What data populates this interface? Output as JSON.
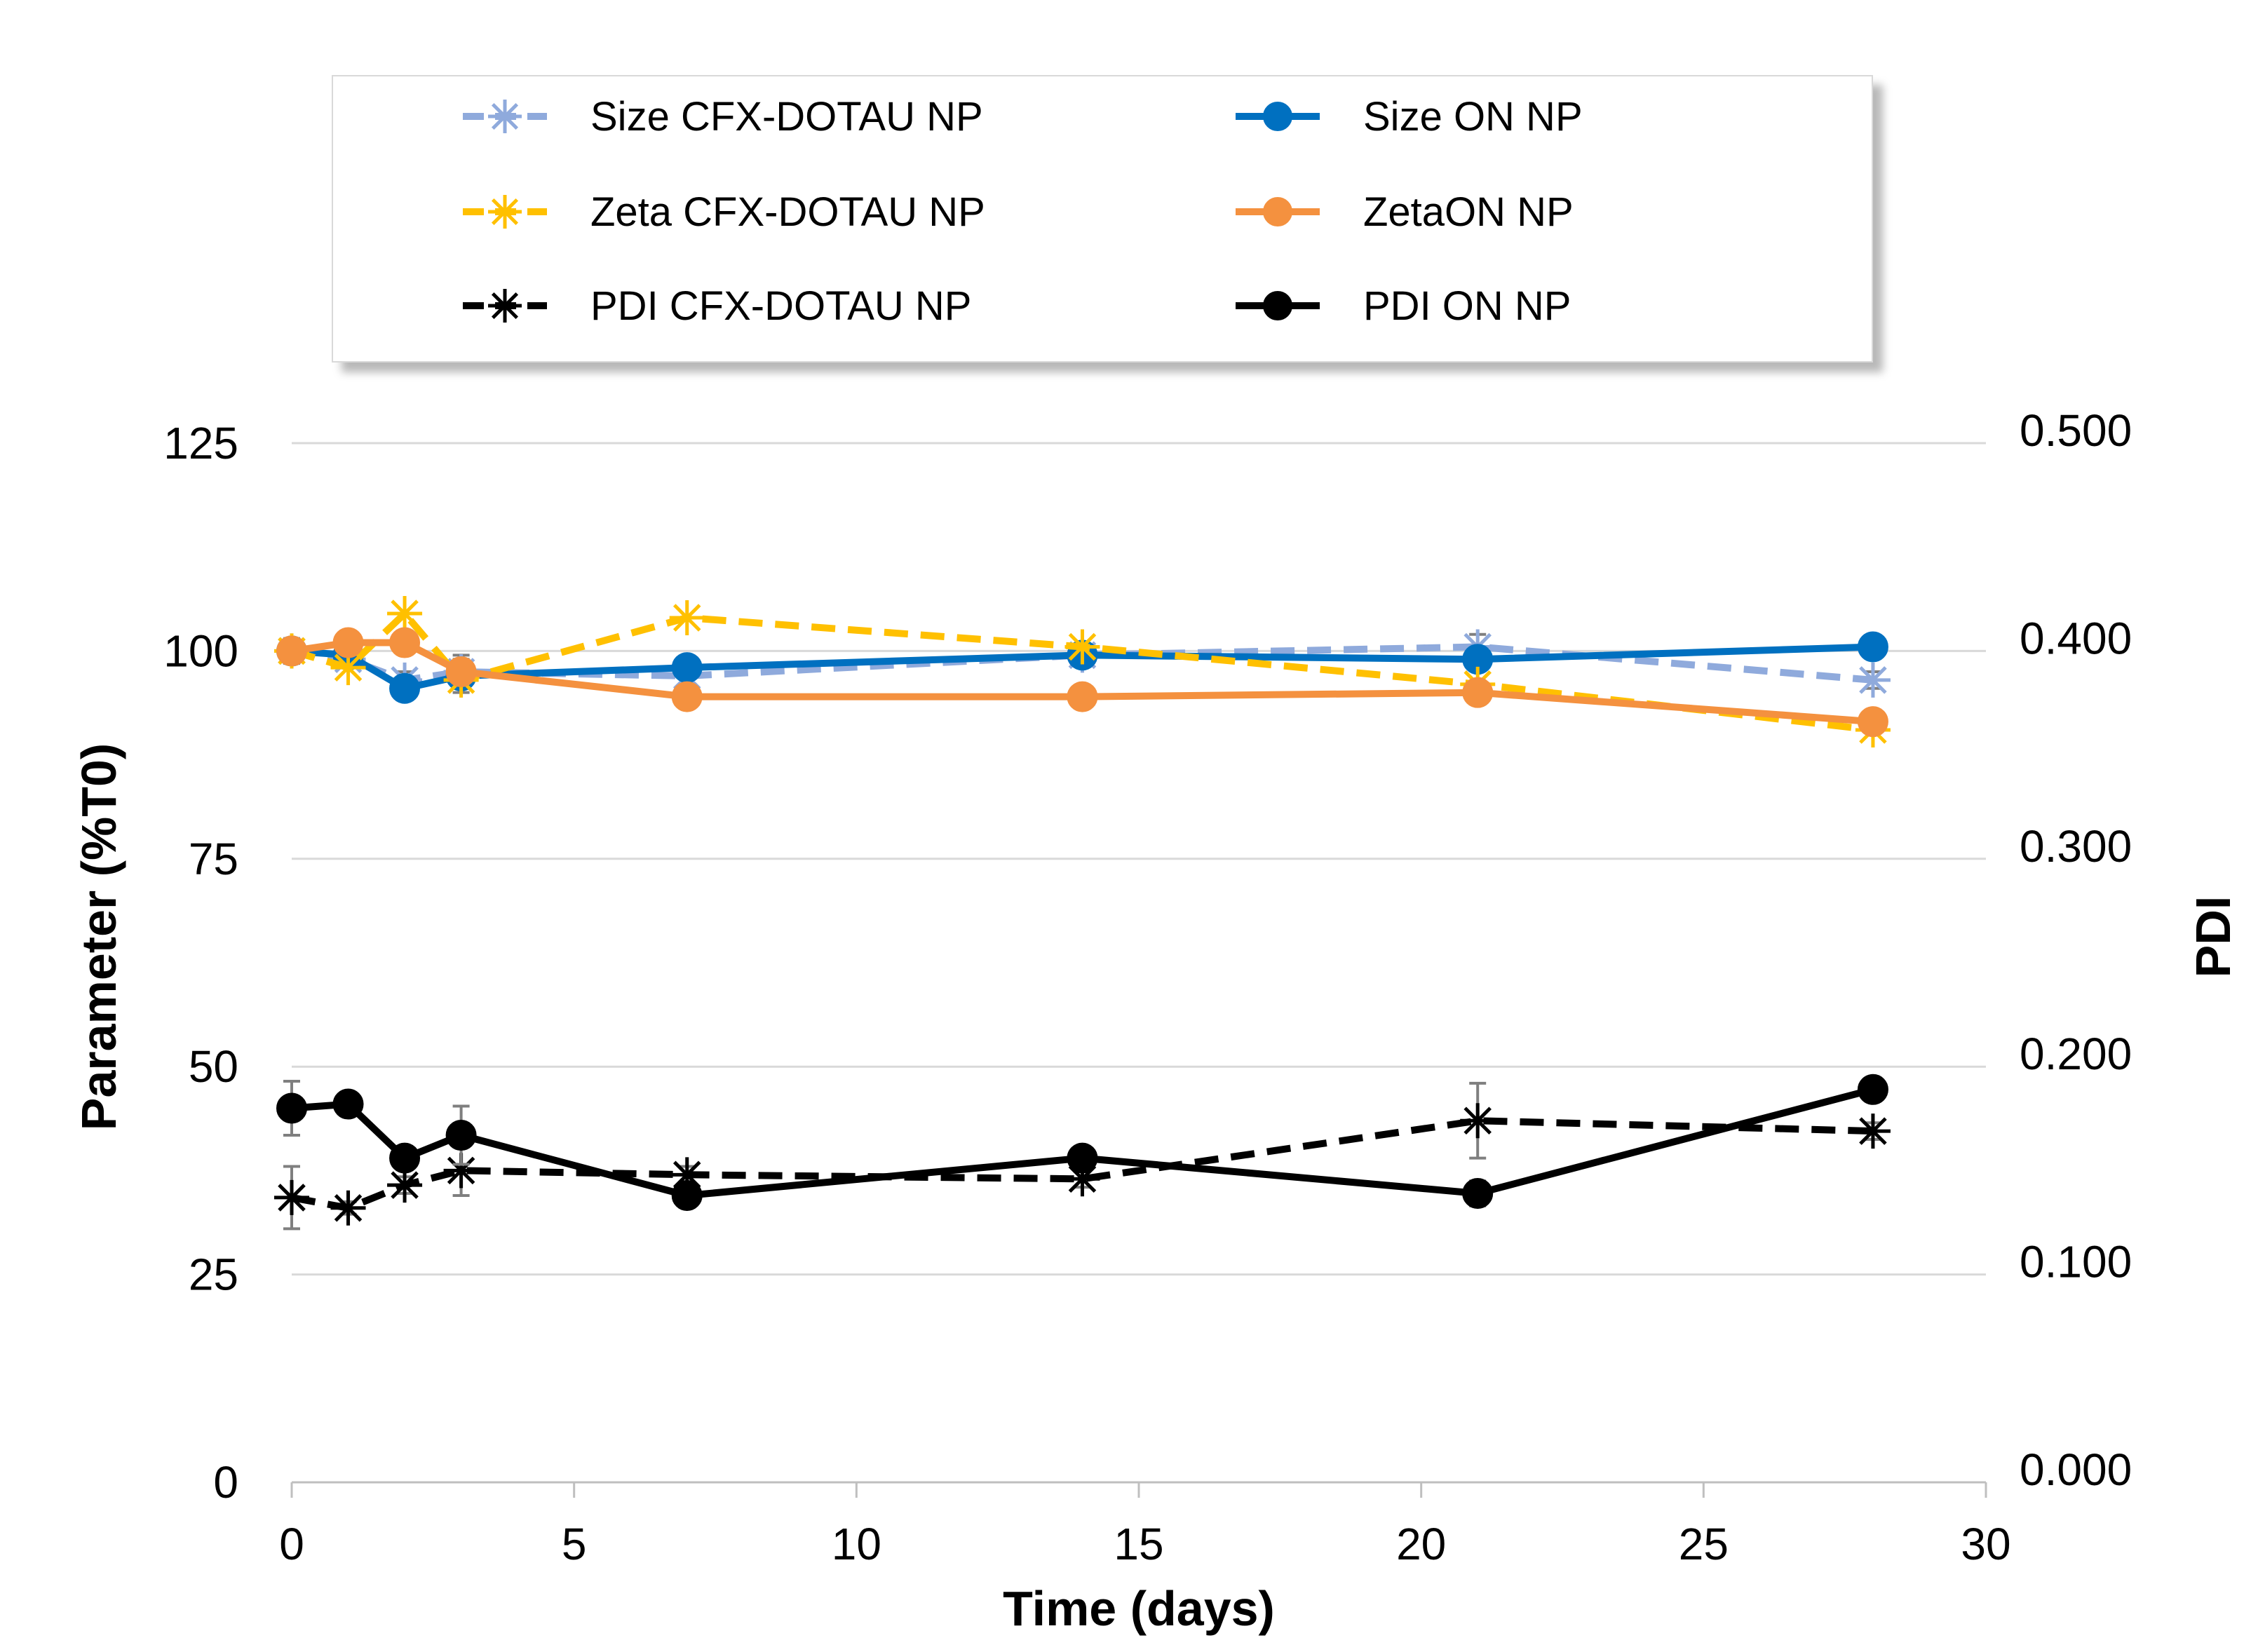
{
  "chart_data": {
    "type": "line",
    "title": "",
    "xlabel": "Time (days)",
    "ylabel": "Parameter (%T0)",
    "y2label": "PDI",
    "xlim": [
      0,
      30
    ],
    "ylim": [
      0,
      125
    ],
    "y2lim": [
      0,
      0.5
    ],
    "x_ticks": [
      "0",
      "5",
      "10",
      "15",
      "20",
      "25",
      "30"
    ],
    "y_ticks": [
      "0",
      "25",
      "50",
      "75",
      "100",
      "125"
    ],
    "y2_ticks": [
      "0.000",
      "0.100",
      "0.200",
      "0.300",
      "0.400",
      "0.500"
    ],
    "grid": true,
    "legend_position": "top",
    "series": [
      {
        "name": "Size CFX-DOTAU NP",
        "axis": "left",
        "color": "#8FAADC",
        "line": "dashed",
        "marker": "asterisk",
        "x": [
          0,
          1,
          2,
          3,
          7,
          14,
          21,
          28
        ],
        "values": [
          100,
          99,
          96.5,
          97.5,
          97,
          99.5,
          100.5,
          96.5
        ],
        "error": [
          1.5,
          1,
          1,
          2,
          1,
          1,
          1.5,
          1
        ]
      },
      {
        "name": "Size ON NP",
        "axis": "left",
        "color": "#0070C0",
        "line": "solid",
        "marker": "circle",
        "x": [
          0,
          1,
          2,
          3,
          7,
          14,
          21,
          28
        ],
        "values": [
          100,
          99.5,
          95.5,
          97,
          98,
          99.5,
          99,
          100.5
        ],
        "error": [
          1,
          1,
          1,
          2,
          1,
          1,
          1,
          1
        ]
      },
      {
        "name": "Zeta CFX-DOTAU NP",
        "axis": "left",
        "color": "#FFC000",
        "line": "dashed",
        "marker": "asterisk",
        "x": [
          0,
          1,
          2,
          3,
          7,
          14,
          21,
          28
        ],
        "values": [
          100,
          98,
          104.5,
          96.5,
          104,
          100.5,
          96,
          90.5
        ],
        "error": [
          0,
          0,
          0,
          0,
          0,
          0,
          0,
          0
        ]
      },
      {
        "name": "ZetaON NP",
        "axis": "left",
        "color": "#F4913F",
        "line": "solid",
        "marker": "circle",
        "x": [
          0,
          1,
          2,
          3,
          7,
          14,
          21,
          28
        ],
        "values": [
          100,
          101,
          101,
          97.5,
          94.5,
          94.5,
          95,
          91.5
        ],
        "error": [
          0,
          0,
          0,
          0,
          0,
          0,
          0,
          0
        ]
      },
      {
        "name": "PDI CFX-DOTAU NP",
        "axis": "right",
        "color": "#000000",
        "line": "dashed",
        "marker": "asterisk",
        "x": [
          0,
          1,
          2,
          3,
          7,
          14,
          21,
          28
        ],
        "values": [
          0.137,
          0.132,
          0.143,
          0.15,
          0.148,
          0.146,
          0.174,
          0.169
        ],
        "error": [
          0.015,
          0.003,
          0.004,
          0.012,
          0.004,
          0.004,
          0.018,
          0.004
        ]
      },
      {
        "name": "PDI ON NP",
        "axis": "right",
        "color": "#000000",
        "line": "solid",
        "marker": "circle",
        "x": [
          0,
          1,
          2,
          3,
          7,
          14,
          21,
          28
        ],
        "values": [
          0.18,
          0.182,
          0.156,
          0.167,
          0.138,
          0.156,
          0.139,
          0.189
        ],
        "error": [
          0.013,
          0.004,
          0.004,
          0.014,
          0.004,
          0.004,
          0.006,
          0.004
        ]
      }
    ]
  }
}
